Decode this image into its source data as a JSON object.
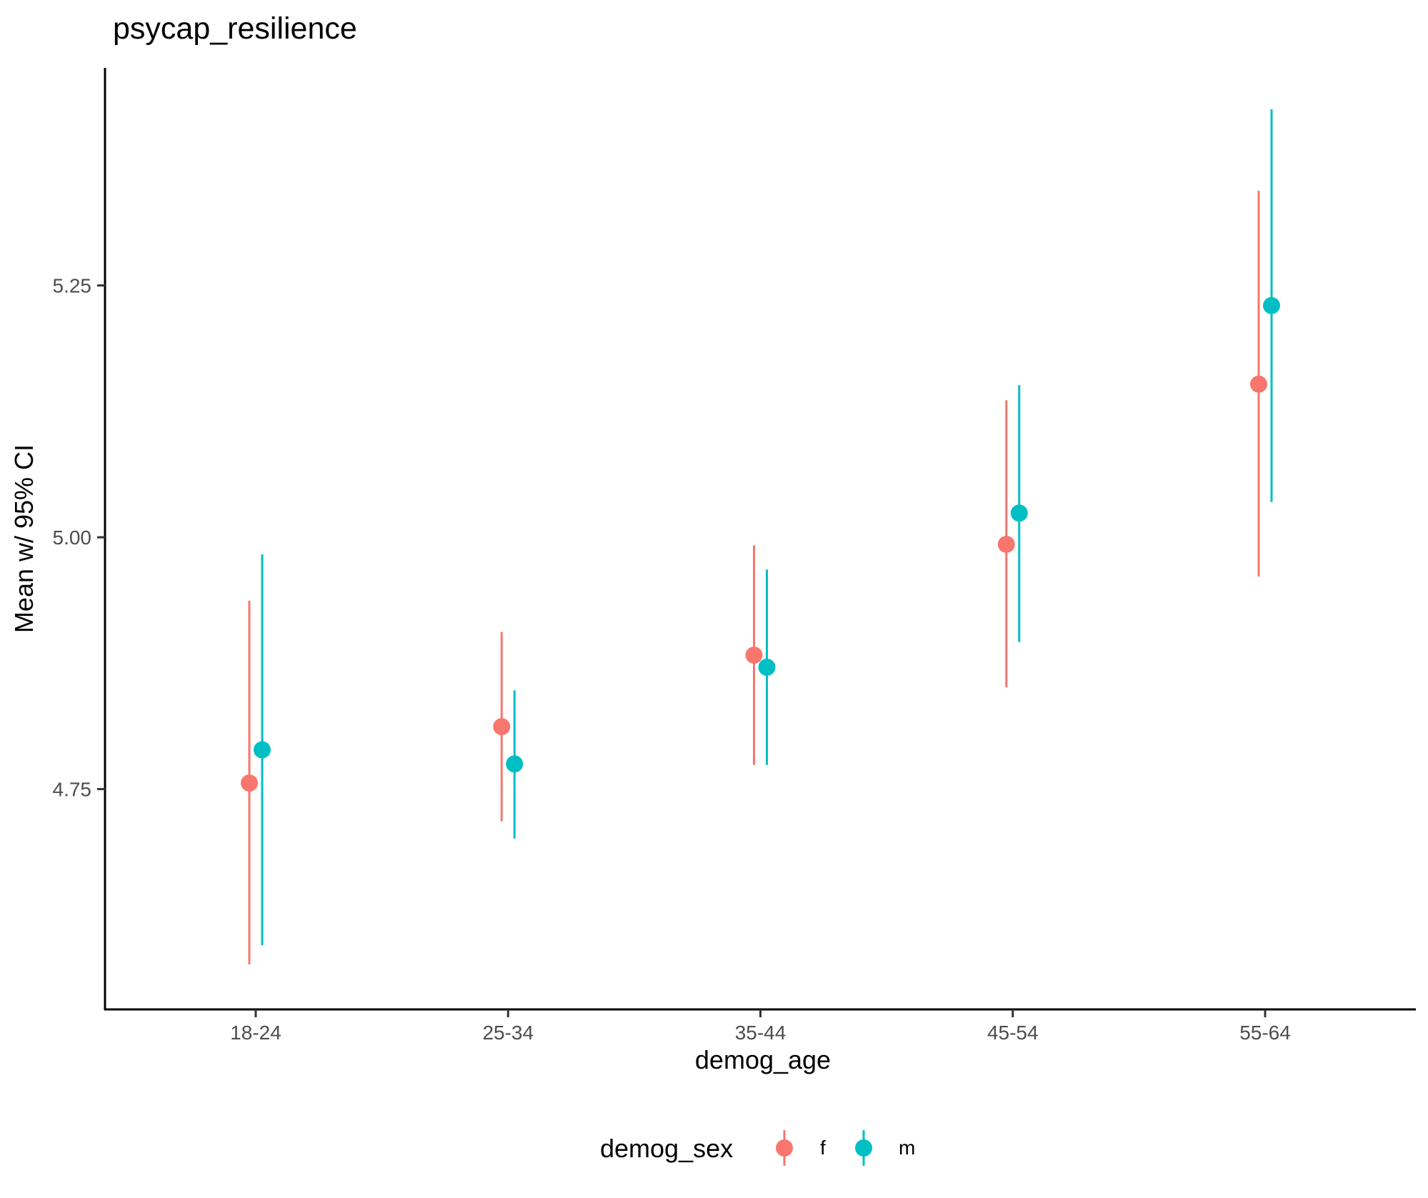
{
  "chart_data": {
    "type": "scatter",
    "subtype": "pointrange",
    "title": "psycap_resilience",
    "xlabel": "demog_age",
    "ylabel": "Mean w/ 95% CI",
    "categories": [
      "18-24",
      "25-34",
      "35-44",
      "45-54",
      "55-64"
    ],
    "ylim": [
      4.532,
      5.466
    ],
    "yticks": [
      4.75,
      5.0,
      5.25
    ],
    "ytick_labels": [
      "4.75",
      "5.00",
      "5.25"
    ],
    "legend": {
      "title": "demog_sex",
      "position": "bottom"
    },
    "series": [
      {
        "name": "f",
        "color": "#F8766D",
        "mean": [
          4.756,
          4.812,
          4.883,
          4.993,
          5.152
        ],
        "lower": [
          4.576,
          4.718,
          4.774,
          4.851,
          4.961
        ],
        "upper": [
          4.937,
          4.906,
          4.992,
          5.136,
          5.344
        ]
      },
      {
        "name": "m",
        "color": "#00BFC4",
        "mean": [
          4.789,
          4.775,
          4.871,
          5.024,
          5.23
        ],
        "lower": [
          4.595,
          4.701,
          4.774,
          4.896,
          5.035
        ],
        "upper": [
          4.983,
          4.848,
          4.968,
          5.151,
          5.425
        ]
      }
    ]
  }
}
